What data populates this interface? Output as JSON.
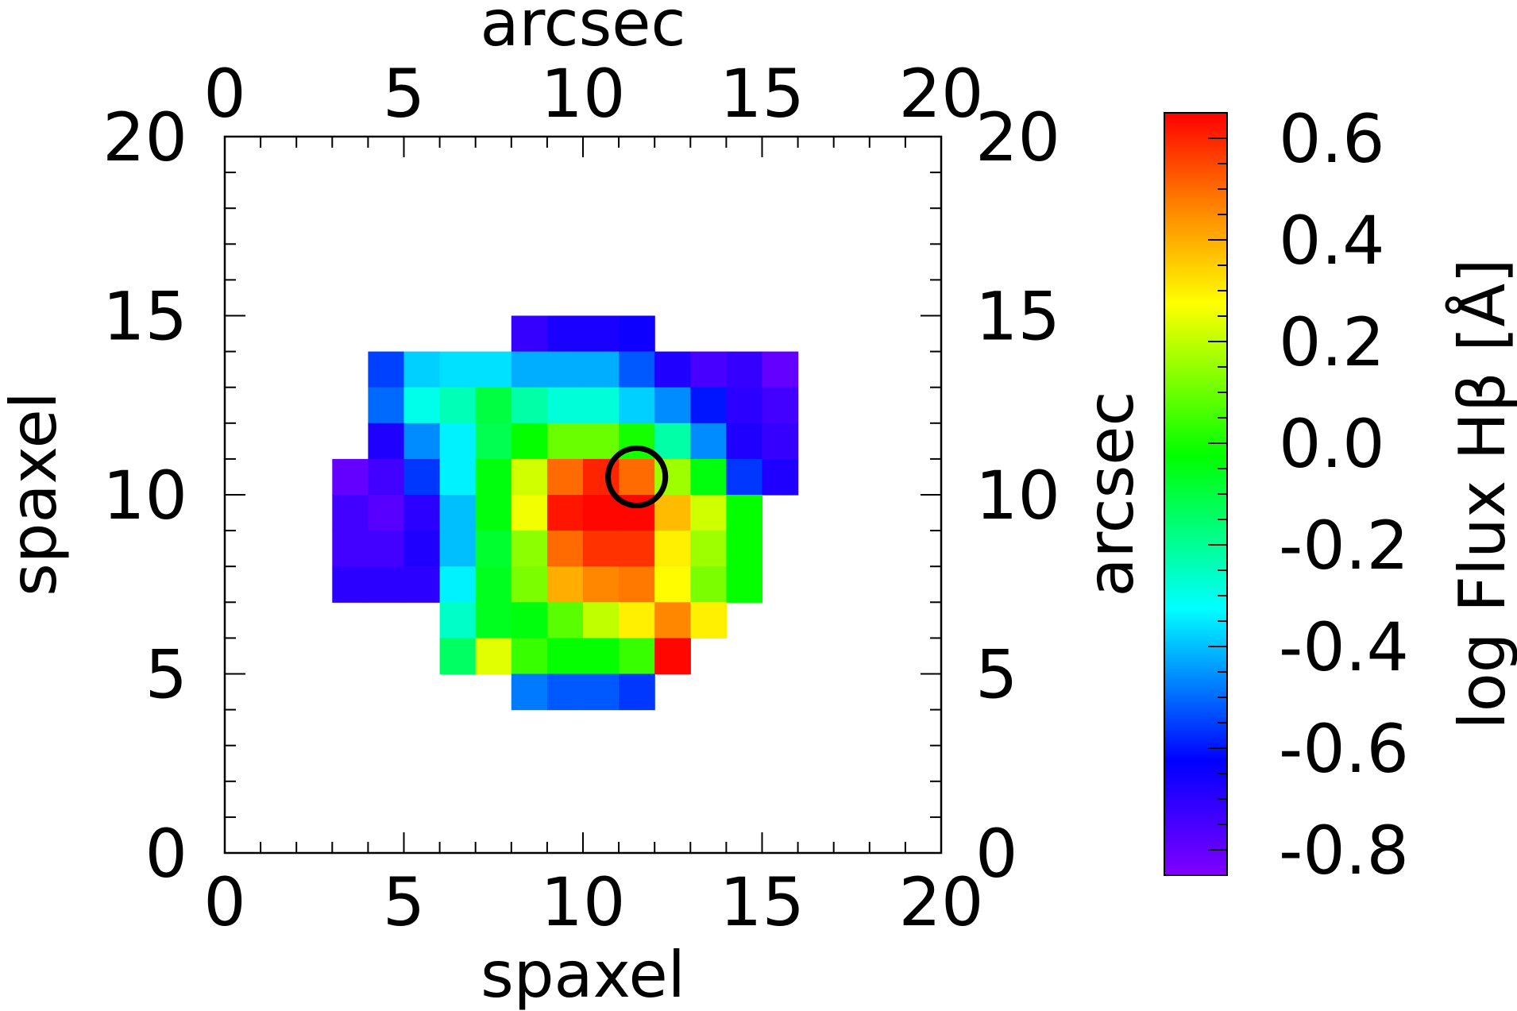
{
  "chart_data": {
    "type": "heatmap",
    "xlabel": "spaxel",
    "ylabel": "spaxel",
    "x2label": "arcsec",
    "y2label": "arcsec",
    "colorbar_label": "log Flux Hβ [Å]",
    "xlim": [
      0,
      20
    ],
    "ylim": [
      0,
      20
    ],
    "x2lim": [
      0,
      20
    ],
    "y2lim": [
      0,
      20
    ],
    "xticks": [
      "0",
      "5",
      "10",
      "15",
      "20"
    ],
    "yticks": [
      "0",
      "5",
      "10",
      "15",
      "20"
    ],
    "x2ticks": [
      "0",
      "5",
      "10",
      "15",
      "20"
    ],
    "y2ticks": [
      "0",
      "5",
      "10",
      "15",
      "20"
    ],
    "color_scale": {
      "vmin": -0.85,
      "vmax": 0.65,
      "ticks": [
        "-0.8",
        "-0.6",
        "-0.4",
        "-0.2",
        "0.0",
        "0.2",
        "0.4",
        "0.6"
      ],
      "colormap": "rainbow"
    },
    "marker": {
      "shape": "circle",
      "x": 11.5,
      "y": 10.5,
      "radius": 0.8,
      "color": "#000000"
    },
    "note": "cells: x,y = lower-left spaxel corner, v = log flux",
    "cells": [
      {
        "x": 8,
        "y": 14,
        "v": -0.72
      },
      {
        "x": 9,
        "y": 14,
        "v": -0.67
      },
      {
        "x": 10,
        "y": 14,
        "v": -0.67
      },
      {
        "x": 11,
        "y": 14,
        "v": -0.65
      },
      {
        "x": 4,
        "y": 13,
        "v": -0.55
      },
      {
        "x": 5,
        "y": 13,
        "v": -0.38
      },
      {
        "x": 6,
        "y": 13,
        "v": -0.36
      },
      {
        "x": 7,
        "y": 13,
        "v": -0.36
      },
      {
        "x": 8,
        "y": 13,
        "v": -0.42
      },
      {
        "x": 9,
        "y": 13,
        "v": -0.42
      },
      {
        "x": 10,
        "y": 13,
        "v": -0.42
      },
      {
        "x": 11,
        "y": 13,
        "v": -0.52
      },
      {
        "x": 12,
        "y": 13,
        "v": -0.68
      },
      {
        "x": 13,
        "y": 13,
        "v": -0.75
      },
      {
        "x": 14,
        "y": 13,
        "v": -0.72
      },
      {
        "x": 15,
        "y": 13,
        "v": -0.8
      },
      {
        "x": 4,
        "y": 12,
        "v": -0.5
      },
      {
        "x": 5,
        "y": 12,
        "v": -0.3
      },
      {
        "x": 6,
        "y": 12,
        "v": -0.24
      },
      {
        "x": 7,
        "y": 12,
        "v": -0.1
      },
      {
        "x": 8,
        "y": 12,
        "v": -0.22
      },
      {
        "x": 9,
        "y": 12,
        "v": -0.28
      },
      {
        "x": 10,
        "y": 12,
        "v": -0.28
      },
      {
        "x": 11,
        "y": 12,
        "v": -0.38
      },
      {
        "x": 12,
        "y": 12,
        "v": -0.46
      },
      {
        "x": 13,
        "y": 12,
        "v": -0.6
      },
      {
        "x": 14,
        "y": 12,
        "v": -0.7
      },
      {
        "x": 15,
        "y": 12,
        "v": -0.74
      },
      {
        "x": 4,
        "y": 11,
        "v": -0.68
      },
      {
        "x": 5,
        "y": 11,
        "v": -0.46
      },
      {
        "x": 6,
        "y": 11,
        "v": -0.34
      },
      {
        "x": 7,
        "y": 11,
        "v": -0.12
      },
      {
        "x": 8,
        "y": 11,
        "v": -0.02
      },
      {
        "x": 9,
        "y": 11,
        "v": 0.1
      },
      {
        "x": 10,
        "y": 11,
        "v": 0.1
      },
      {
        "x": 11,
        "y": 11,
        "v": 0.0
      },
      {
        "x": 12,
        "y": 11,
        "v": -0.22
      },
      {
        "x": 13,
        "y": 11,
        "v": -0.46
      },
      {
        "x": 14,
        "y": 11,
        "v": -0.68
      },
      {
        "x": 15,
        "y": 11,
        "v": -0.72
      },
      {
        "x": 3,
        "y": 10,
        "v": -0.8
      },
      {
        "x": 4,
        "y": 10,
        "v": -0.74
      },
      {
        "x": 5,
        "y": 10,
        "v": -0.56
      },
      {
        "x": 6,
        "y": 10,
        "v": -0.34
      },
      {
        "x": 7,
        "y": 10,
        "v": -0.04
      },
      {
        "x": 8,
        "y": 10,
        "v": 0.22
      },
      {
        "x": 9,
        "y": 10,
        "v": 0.5
      },
      {
        "x": 10,
        "y": 10,
        "v": 0.6
      },
      {
        "x": 11,
        "y": 10,
        "v": 0.5
      },
      {
        "x": 12,
        "y": 10,
        "v": 0.16
      },
      {
        "x": 13,
        "y": 10,
        "v": -0.04
      },
      {
        "x": 14,
        "y": 10,
        "v": -0.56
      },
      {
        "x": 15,
        "y": 10,
        "v": -0.68
      },
      {
        "x": 3,
        "y": 9,
        "v": -0.74
      },
      {
        "x": 4,
        "y": 9,
        "v": -0.78
      },
      {
        "x": 5,
        "y": 9,
        "v": -0.7
      },
      {
        "x": 6,
        "y": 9,
        "v": -0.4
      },
      {
        "x": 7,
        "y": 9,
        "v": -0.04
      },
      {
        "x": 8,
        "y": 9,
        "v": 0.26
      },
      {
        "x": 9,
        "y": 9,
        "v": 0.62
      },
      {
        "x": 10,
        "y": 9,
        "v": 0.64
      },
      {
        "x": 11,
        "y": 9,
        "v": 0.64
      },
      {
        "x": 12,
        "y": 9,
        "v": 0.38
      },
      {
        "x": 13,
        "y": 9,
        "v": 0.22
      },
      {
        "x": 14,
        "y": 9,
        "v": -0.02
      },
      {
        "x": 3,
        "y": 8,
        "v": -0.74
      },
      {
        "x": 4,
        "y": 8,
        "v": -0.74
      },
      {
        "x": 5,
        "y": 8,
        "v": -0.68
      },
      {
        "x": 6,
        "y": 8,
        "v": -0.4
      },
      {
        "x": 7,
        "y": 8,
        "v": -0.08
      },
      {
        "x": 8,
        "y": 8,
        "v": 0.14
      },
      {
        "x": 9,
        "y": 8,
        "v": 0.5
      },
      {
        "x": 10,
        "y": 8,
        "v": 0.58
      },
      {
        "x": 11,
        "y": 8,
        "v": 0.58
      },
      {
        "x": 12,
        "y": 8,
        "v": 0.3
      },
      {
        "x": 13,
        "y": 8,
        "v": 0.16
      },
      {
        "x": 14,
        "y": 8,
        "v": -0.02
      },
      {
        "x": 3,
        "y": 7,
        "v": -0.7
      },
      {
        "x": 4,
        "y": 7,
        "v": -0.7
      },
      {
        "x": 5,
        "y": 7,
        "v": -0.7
      },
      {
        "x": 6,
        "y": 7,
        "v": -0.34
      },
      {
        "x": 7,
        "y": 7,
        "v": -0.06
      },
      {
        "x": 8,
        "y": 7,
        "v": 0.12
      },
      {
        "x": 9,
        "y": 7,
        "v": 0.4
      },
      {
        "x": 10,
        "y": 7,
        "v": 0.46
      },
      {
        "x": 11,
        "y": 7,
        "v": 0.48
      },
      {
        "x": 12,
        "y": 7,
        "v": 0.28
      },
      {
        "x": 13,
        "y": 7,
        "v": 0.12
      },
      {
        "x": 14,
        "y": 7,
        "v": -0.02
      },
      {
        "x": 6,
        "y": 6,
        "v": -0.26
      },
      {
        "x": 7,
        "y": 6,
        "v": -0.06
      },
      {
        "x": 8,
        "y": 6,
        "v": -0.04
      },
      {
        "x": 9,
        "y": 6,
        "v": 0.08
      },
      {
        "x": 10,
        "y": 6,
        "v": 0.2
      },
      {
        "x": 11,
        "y": 6,
        "v": 0.3
      },
      {
        "x": 12,
        "y": 6,
        "v": 0.46
      },
      {
        "x": 13,
        "y": 6,
        "v": 0.3
      },
      {
        "x": 6,
        "y": 5,
        "v": -0.14
      },
      {
        "x": 7,
        "y": 5,
        "v": 0.24
      },
      {
        "x": 8,
        "y": 5,
        "v": 0.04
      },
      {
        "x": 9,
        "y": 5,
        "v": -0.02
      },
      {
        "x": 10,
        "y": 5,
        "v": -0.02
      },
      {
        "x": 11,
        "y": 5,
        "v": 0.04
      },
      {
        "x": 12,
        "y": 5,
        "v": 0.64
      },
      {
        "x": 8,
        "y": 4,
        "v": -0.48
      },
      {
        "x": 9,
        "y": 4,
        "v": -0.52
      },
      {
        "x": 10,
        "y": 4,
        "v": -0.52
      },
      {
        "x": 11,
        "y": 4,
        "v": -0.56
      }
    ]
  }
}
